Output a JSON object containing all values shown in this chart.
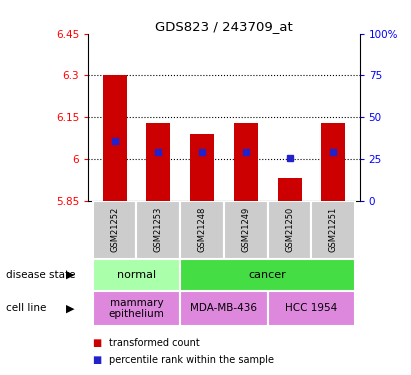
{
  "title": "GDS823 / 243709_at",
  "samples": [
    "GSM21252",
    "GSM21253",
    "GSM21248",
    "GSM21249",
    "GSM21250",
    "GSM21251"
  ],
  "bar_values": [
    6.3,
    6.13,
    6.09,
    6.13,
    5.93,
    6.13
  ],
  "percentile_values": [
    6.065,
    6.025,
    6.025,
    6.025,
    6.005,
    6.025
  ],
  "ymin": 5.85,
  "ymax": 6.45,
  "yticks": [
    5.85,
    6.0,
    6.15,
    6.3,
    6.45
  ],
  "ytick_labels": [
    "5.85",
    "6",
    "6.15",
    "6.3",
    "6.45"
  ],
  "right_yticks_pct": [
    0,
    25,
    50,
    75,
    100
  ],
  "bar_color": "#cc0000",
  "dot_color": "#2222cc",
  "bar_width": 0.55,
  "disease_state_groups": [
    {
      "label": "normal",
      "cols": [
        0,
        1
      ],
      "color": "#aaffaa"
    },
    {
      "label": "cancer",
      "cols": [
        2,
        3,
        4,
        5
      ],
      "color": "#44dd44"
    }
  ],
  "cell_line_groups": [
    {
      "label": "mammary\nepithelium",
      "cols": [
        0,
        1
      ],
      "color": "#dd88dd"
    },
    {
      "label": "MDA-MB-436",
      "cols": [
        2,
        3
      ],
      "color": "#dd88dd"
    },
    {
      "label": "HCC 1954",
      "cols": [
        4,
        5
      ],
      "color": "#dd88dd"
    }
  ],
  "legend_items": [
    {
      "label": "transformed count",
      "color": "#cc0000"
    },
    {
      "label": "percentile rank within the sample",
      "color": "#2222cc"
    }
  ],
  "left_label": "disease state",
  "left_label2": "cell line",
  "sample_bg": "#cccccc"
}
